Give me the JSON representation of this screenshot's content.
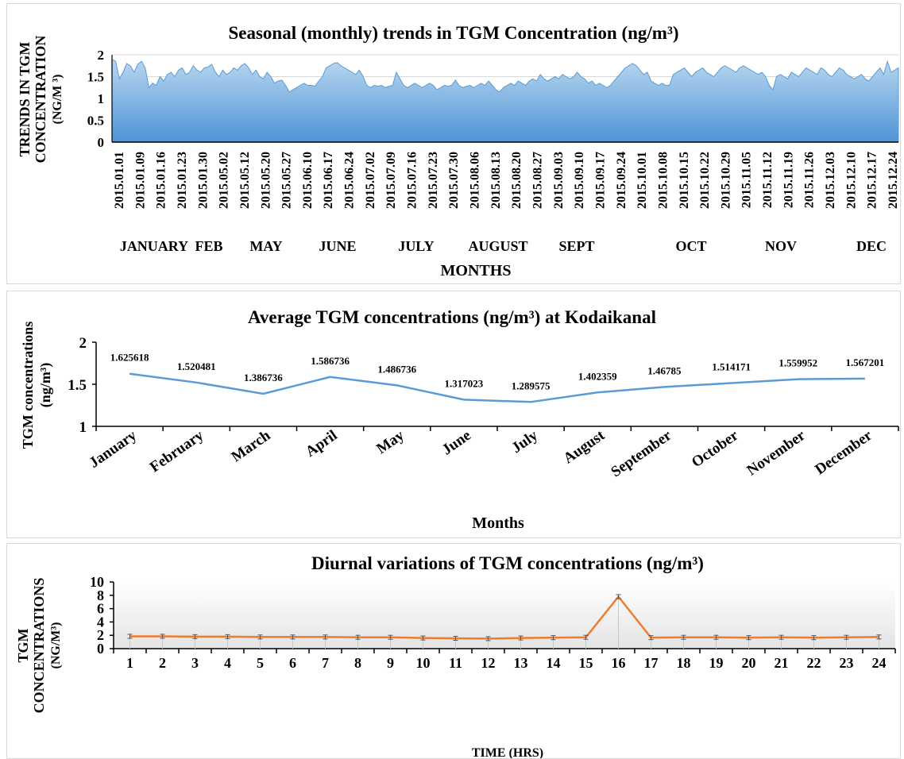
{
  "colors": {
    "area_fill_top": "#b9d7ef",
    "area_fill_bottom": "#4d94d6",
    "area_stroke": "#5b9bd5",
    "line_blue": "#5b9bd5",
    "line_orange": "#ed7d31",
    "grid": "#d9d9d9"
  },
  "chart_data": [
    {
      "type": "area",
      "title": "Seasonal (monthly)  trends in TGM Concentration (ng/m³)",
      "xlabel": "MONTHS",
      "ylabel": "TRENDS IN TGM CONCENTRATION (NG/M ³)",
      "ylabel_lines": [
        "TRENDS IN TGM",
        "CONCENTRATION",
        "(NG/M ³)"
      ],
      "ylim": [
        0,
        2
      ],
      "yticks": [
        "0",
        "0.5",
        "1",
        "1.5",
        "2"
      ],
      "grid": "horizontal",
      "x_tick_labels": [
        "2015.01.01",
        "2015.01.09",
        "2015.01.16",
        "2015.01.23",
        "2015.01.30",
        "2015.05.02",
        "2015.05.12",
        "2015.05.20",
        "2015.05.27",
        "2015.06.10",
        "2015.06.17",
        "2015.06.24",
        "2015.07.02",
        "2015.07.09",
        "2015.07.16",
        "2015.07.23",
        "2015.07.30",
        "2015.08.06",
        "2015.08.13",
        "2015.08.20",
        "2015.08.27",
        "2015.09.03",
        "2015.09.10",
        "2015.09.17",
        "2015.09.24",
        "2015.10.01",
        "2015.10.08",
        "2015.10.15",
        "2015.10.22",
        "2015.10.29",
        "2015.11.05",
        "2015.11.12",
        "2015.11.19",
        "2015.11.26",
        "2015.12.03",
        "2015.12.10",
        "2015.12.17",
        "2015.12.24"
      ],
      "month_labels": [
        "JANUARY",
        "FEB",
        "MAY",
        "JUNE",
        "JULY",
        "AUGUST",
        "SEPT",
        "OCT",
        "NOV",
        "DEC"
      ],
      "values": [
        1.9,
        1.85,
        1.45,
        1.6,
        1.8,
        1.75,
        1.6,
        1.78,
        1.85,
        1.7,
        1.25,
        1.35,
        1.3,
        1.5,
        1.4,
        1.55,
        1.6,
        1.5,
        1.65,
        1.7,
        1.55,
        1.6,
        1.75,
        1.65,
        1.6,
        1.7,
        1.72,
        1.78,
        1.6,
        1.5,
        1.65,
        1.55,
        1.6,
        1.7,
        1.65,
        1.75,
        1.8,
        1.7,
        1.55,
        1.65,
        1.5,
        1.45,
        1.6,
        1.5,
        1.35,
        1.4,
        1.42,
        1.3,
        1.15,
        1.2,
        1.25,
        1.3,
        1.35,
        1.3,
        1.3,
        1.28,
        1.4,
        1.5,
        1.7,
        1.75,
        1.8,
        1.82,
        1.75,
        1.7,
        1.65,
        1.6,
        1.55,
        1.65,
        1.5,
        1.3,
        1.25,
        1.3,
        1.28,
        1.3,
        1.25,
        1.28,
        1.3,
        1.6,
        1.45,
        1.3,
        1.25,
        1.3,
        1.35,
        1.3,
        1.25,
        1.3,
        1.35,
        1.3,
        1.2,
        1.25,
        1.3,
        1.28,
        1.3,
        1.42,
        1.3,
        1.25,
        1.28,
        1.3,
        1.25,
        1.3,
        1.35,
        1.3,
        1.4,
        1.3,
        1.2,
        1.15,
        1.25,
        1.3,
        1.35,
        1.3,
        1.4,
        1.35,
        1.3,
        1.4,
        1.45,
        1.4,
        1.55,
        1.45,
        1.4,
        1.45,
        1.5,
        1.45,
        1.55,
        1.5,
        1.45,
        1.5,
        1.6,
        1.5,
        1.45,
        1.35,
        1.4,
        1.3,
        1.35,
        1.3,
        1.25,
        1.3,
        1.4,
        1.5,
        1.6,
        1.7,
        1.75,
        1.8,
        1.75,
        1.65,
        1.55,
        1.6,
        1.4,
        1.35,
        1.3,
        1.35,
        1.3,
        1.3,
        1.55,
        1.6,
        1.65,
        1.7,
        1.6,
        1.5,
        1.6,
        1.65,
        1.7,
        1.6,
        1.55,
        1.5,
        1.6,
        1.7,
        1.75,
        1.7,
        1.65,
        1.6,
        1.7,
        1.75,
        1.7,
        1.65,
        1.6,
        1.55,
        1.6,
        1.5,
        1.3,
        1.2,
        1.5,
        1.55,
        1.5,
        1.45,
        1.6,
        1.55,
        1.5,
        1.6,
        1.7,
        1.65,
        1.6,
        1.55,
        1.7,
        1.65,
        1.55,
        1.5,
        1.6,
        1.7,
        1.65,
        1.55,
        1.5,
        1.45,
        1.5,
        1.55,
        1.45,
        1.4,
        1.5,
        1.6,
        1.7,
        1.55,
        1.85,
        1.6,
        1.65,
        1.7
      ]
    },
    {
      "type": "line",
      "title": "Average TGM concentrations (ng/m³) at Kodaikanal",
      "xlabel": "Months",
      "ylabel": "TGM concentrations (ng/m³)",
      "ylabel_lines": [
        "TGM concentrations",
        "(ng/m³)"
      ],
      "ylim": [
        1,
        2
      ],
      "yticks": [
        "1",
        "1.5",
        "2"
      ],
      "categories": [
        "January",
        "February",
        "March",
        "April",
        "May",
        "June",
        "July",
        "August",
        "September",
        "October",
        "November",
        "December"
      ],
      "values": [
        1.625618,
        1.520481,
        1.386736,
        1.586736,
        1.486736,
        1.317023,
        1.289575,
        1.402359,
        1.46785,
        1.514171,
        1.559952,
        1.567201
      ],
      "data_labels": [
        "1.625618",
        "1.520481",
        "1.386736",
        "1.586736",
        "1.486736",
        "1.317023",
        "1.289575",
        "1.402359",
        "1.46785",
        "1.514171",
        "1.559952",
        "1.567201"
      ]
    },
    {
      "type": "line",
      "title": "Diurnal variations of TGM concentrations (ng/m³)",
      "xlabel": "TIME (HRS)",
      "ylabel": "TGM CONCENTRATIONS (NG/M³)",
      "ylabel_lines": [
        "TGM",
        "CONCENTRATIONS",
        "(NG/M³)"
      ],
      "ylim": [
        0,
        10
      ],
      "yticks": [
        "0",
        "2",
        "4",
        "6",
        "8",
        "10"
      ],
      "categories": [
        "1",
        "2",
        "3",
        "4",
        "5",
        "6",
        "7",
        "8",
        "9",
        "10",
        "11",
        "12",
        "13",
        "14",
        "15",
        "16",
        "17",
        "18",
        "19",
        "20",
        "21",
        "22",
        "23",
        "24"
      ],
      "values": [
        1.85,
        1.85,
        1.8,
        1.8,
        1.75,
        1.75,
        1.75,
        1.7,
        1.7,
        1.6,
        1.55,
        1.5,
        1.6,
        1.65,
        1.7,
        7.8,
        1.65,
        1.7,
        1.7,
        1.65,
        1.7,
        1.65,
        1.7,
        1.75
      ],
      "error": [
        0.3,
        0.3,
        0.3,
        0.3,
        0.3,
        0.3,
        0.3,
        0.3,
        0.3,
        0.3,
        0.3,
        0.3,
        0.3,
        0.3,
        0.3,
        0.3,
        0.3,
        0.3,
        0.3,
        0.3,
        0.3,
        0.3,
        0.3,
        0.3
      ]
    }
  ]
}
